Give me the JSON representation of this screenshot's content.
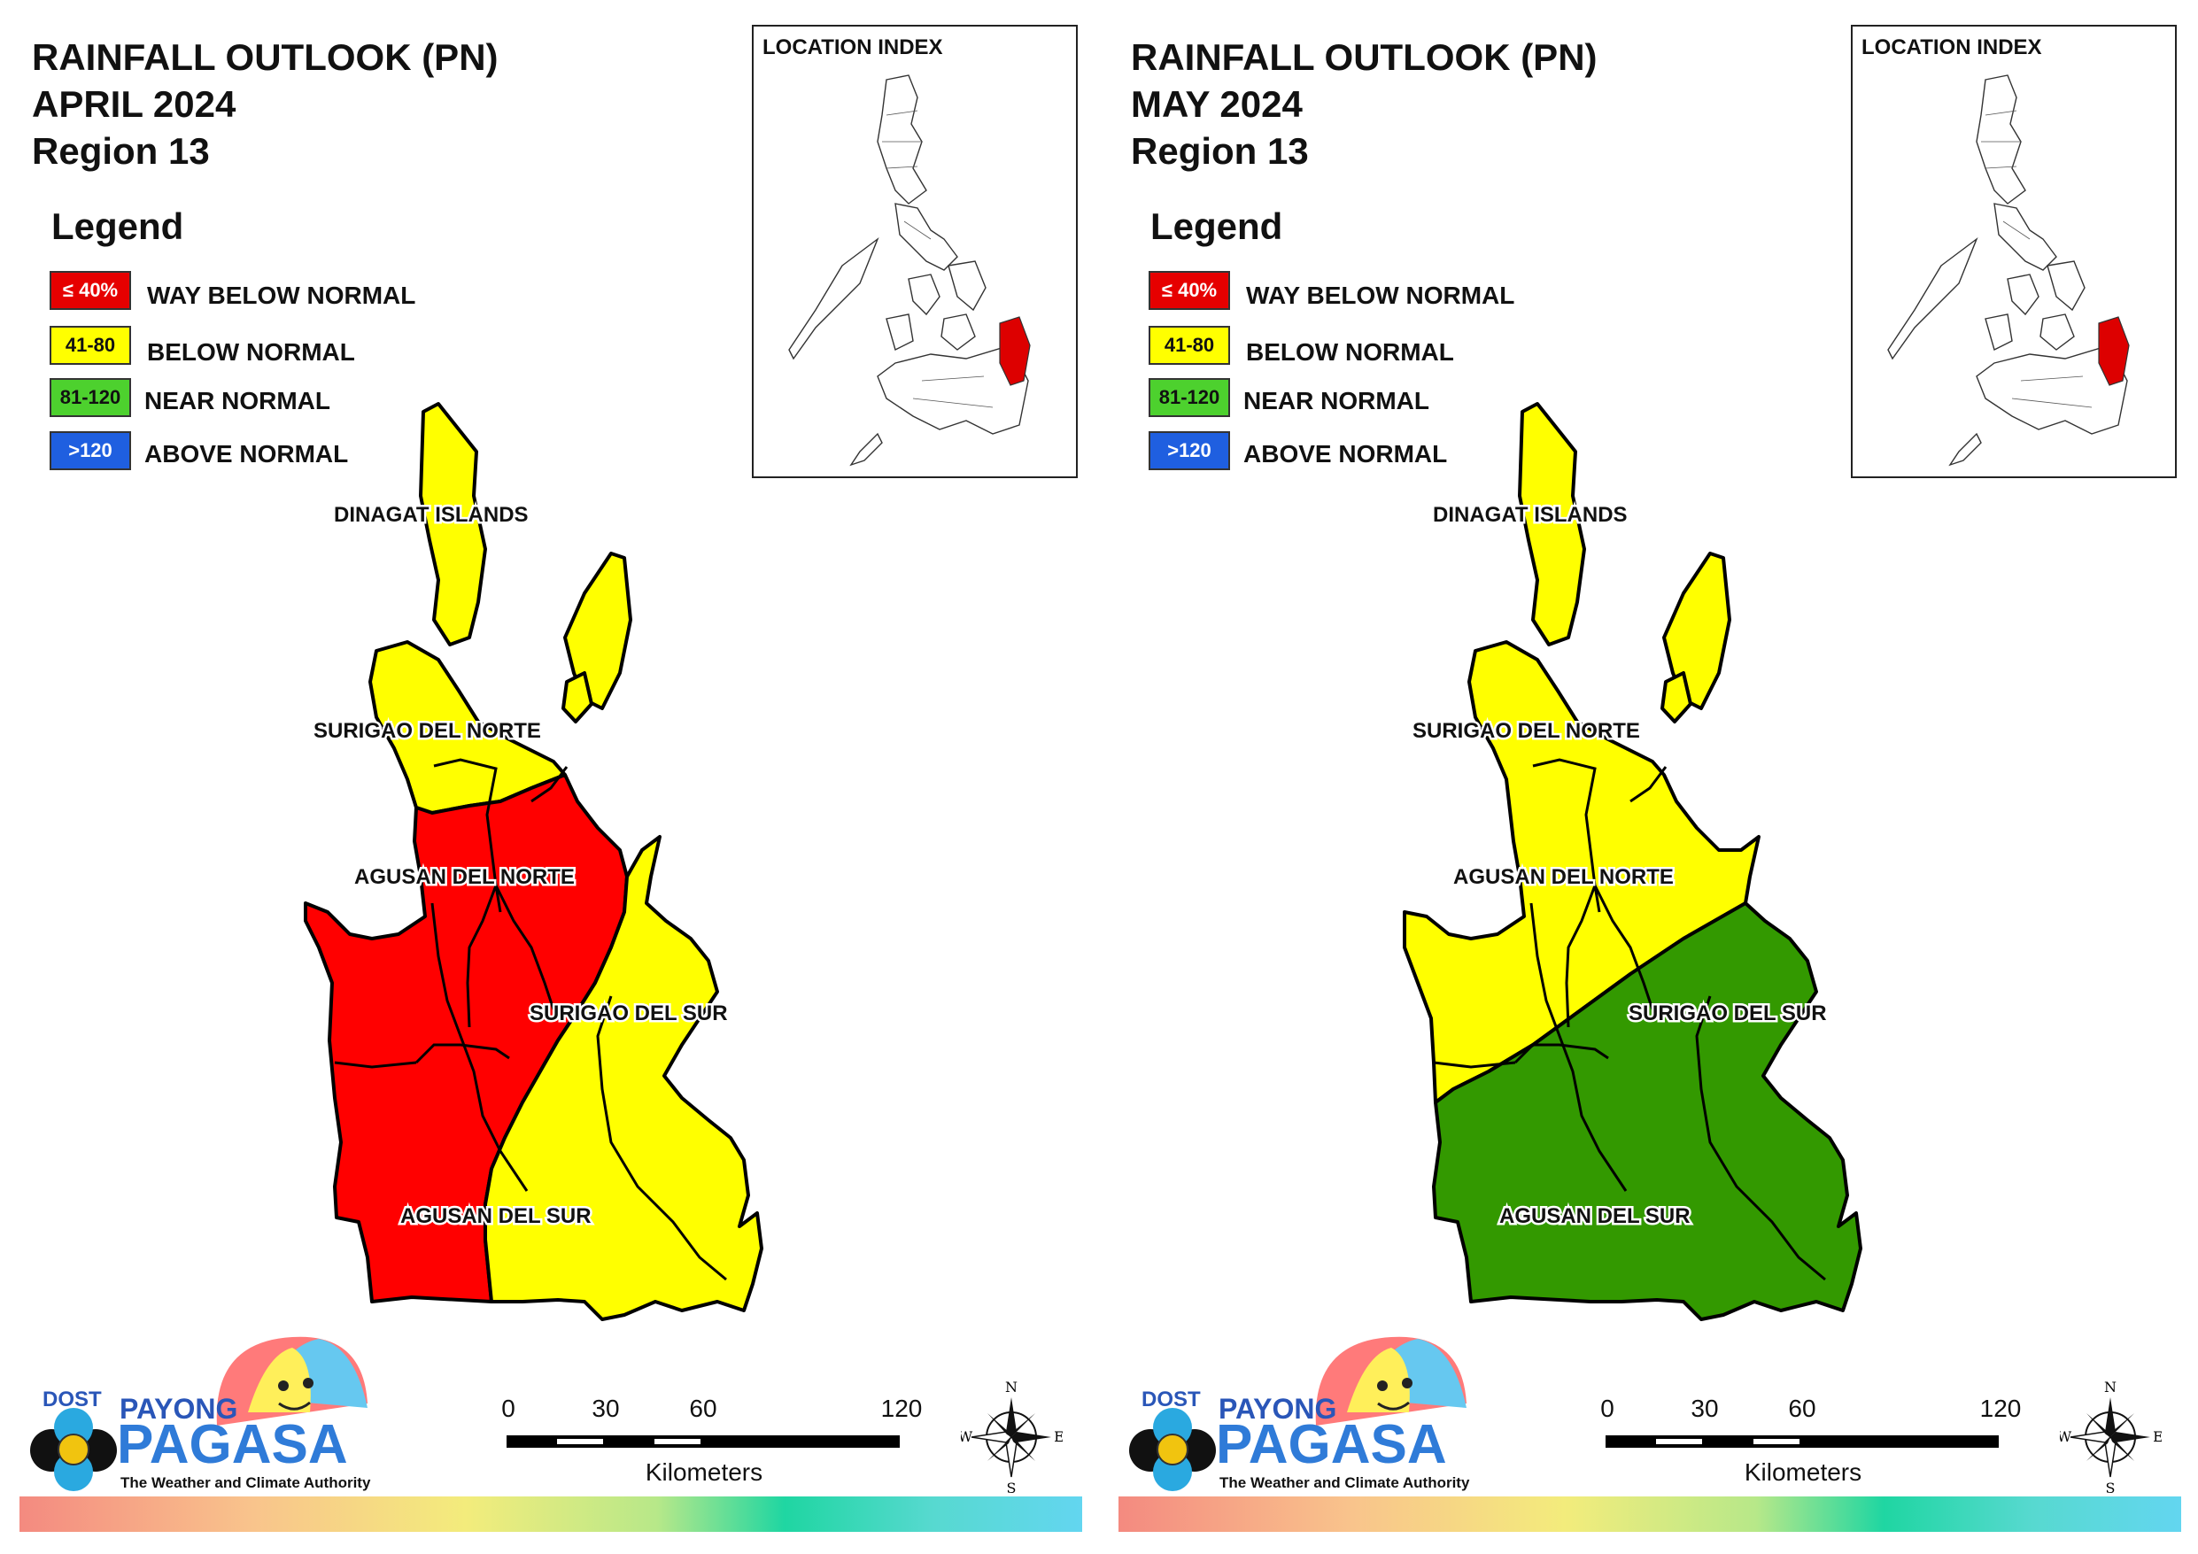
{
  "panels": [
    {
      "id": "april",
      "title_line1": "RAINFALL OUTLOOK (PN)",
      "title_line2": "APRIL 2024",
      "title_line3": "Region 13",
      "zones": {
        "north": "#ffff00",
        "west_belt": "#ff0000",
        "east_coast": "#ffff00"
      }
    },
    {
      "id": "may",
      "title_line1": "RAINFALL OUTLOOK (PN)",
      "title_line2": "MAY 2024",
      "title_line3": "Region 13",
      "zones": {
        "north": "#ffff00",
        "west_belt": "#ffff00",
        "south": "#339900"
      }
    }
  ],
  "legend": {
    "title": "Legend",
    "items": [
      {
        "code": "≤ 40%",
        "label": "WAY BELOW NORMAL",
        "color": "#e60000",
        "text_color": "#ffffff"
      },
      {
        "code": "41-80",
        "label": "BELOW NORMAL",
        "color": "#ffff00",
        "text_color": "#111111"
      },
      {
        "code": "81-120",
        "label": "NEAR NORMAL",
        "color": "#4dd12e",
        "text_color": "#111111"
      },
      {
        "code": ">120",
        "label": "ABOVE NORMAL",
        "color": "#1f5fe0",
        "text_color": "#ffffff"
      }
    ]
  },
  "location_index": {
    "title": "LOCATION INDEX",
    "highlight_color": "#dd0000"
  },
  "provinces": {
    "dinagat": "DINAGAT ISLANDS",
    "surigao_norte": "SURIGAO DEL NORTE",
    "agusan_norte": "AGUSAN DEL NORTE",
    "surigao_sur": "SURIGAO DEL SUR",
    "agusan_sur": "AGUSAN DEL SUR"
  },
  "logo": {
    "dost": "DOST",
    "payong": "PAYONG",
    "pagasa": "PAGASA",
    "tagline": "The Weather and Climate Authority"
  },
  "scale": {
    "ticks": [
      "0",
      "30",
      "60",
      "120"
    ],
    "unit": "Kilometers"
  },
  "compass": {
    "n": "N",
    "s": "S",
    "e": "E",
    "w": "W"
  }
}
